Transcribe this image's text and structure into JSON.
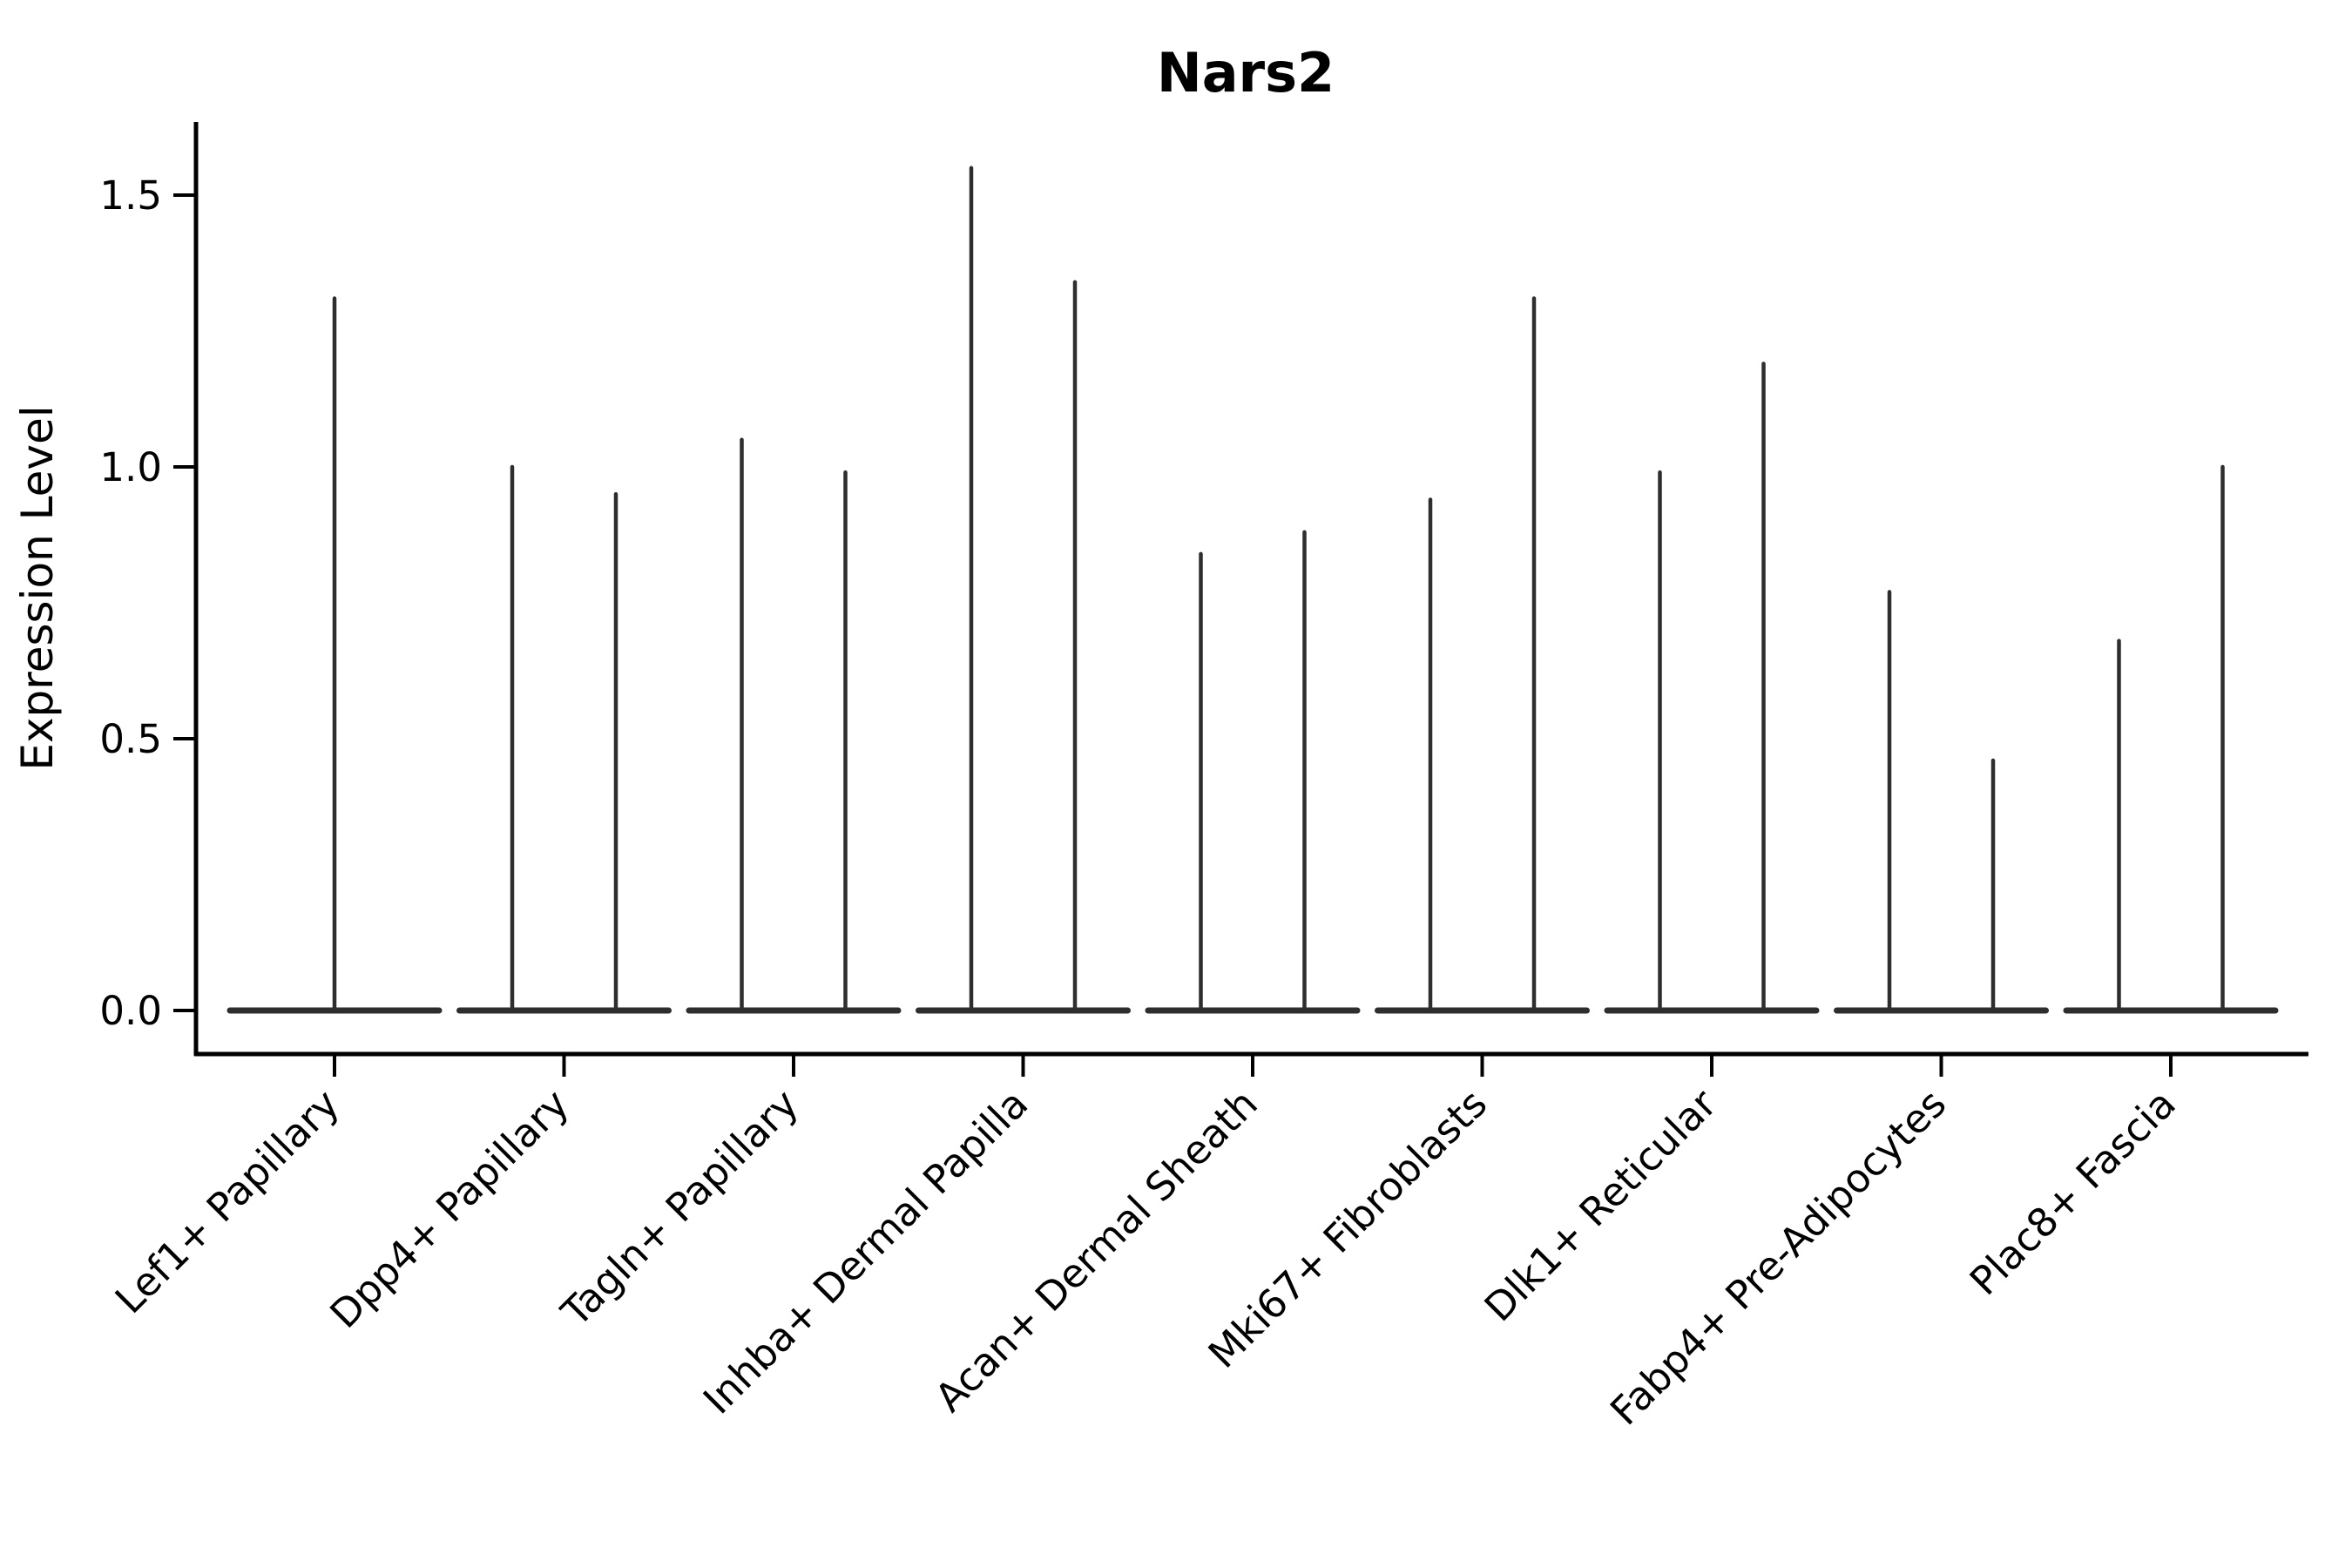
{
  "chart_data": {
    "type": "violin",
    "title": "Nars2",
    "ylabel": "Expression Level",
    "xlabel": "",
    "ylim": [
      0,
      1.64
    ],
    "yticks": [
      0.0,
      0.5,
      1.0,
      1.5
    ],
    "ytick_labels": [
      "0.0",
      "0.5",
      "1.0",
      "1.5"
    ],
    "grid": false,
    "legend_position": "none",
    "categories": [
      "Lef1+ Papillary",
      "Dpp4+ Papillary",
      "Tagln+ Papillary",
      "Inhba+ Dermal Papilla",
      "Acan+ Dermal Sheath",
      "Mki67+ Fibroblasts",
      "Dlk1+ Reticular",
      "Fabp4+ Pre-Adipocytes",
      "Plac8+ Fascia"
    ],
    "baseline_value": 0.0,
    "violins": [
      {
        "category": "Lef1+ Papillary",
        "spike_maxima": [
          1.31
        ]
      },
      {
        "category": "Dpp4+ Papillary",
        "spike_maxima": [
          1.0,
          0.95
        ]
      },
      {
        "category": "Tagln+ Papillary",
        "spike_maxima": [
          1.05,
          0.99
        ]
      },
      {
        "category": "Inhba+ Dermal Papilla",
        "spike_maxima": [
          1.55,
          1.34
        ]
      },
      {
        "category": "Acan+ Dermal Sheath",
        "spike_maxima": [
          0.84,
          0.88
        ]
      },
      {
        "category": "Mki67+ Fibroblasts",
        "spike_maxima": [
          0.94,
          1.31
        ]
      },
      {
        "category": "Dlk1+ Reticular",
        "spike_maxima": [
          0.99,
          1.19
        ]
      },
      {
        "category": "Fabp4+ Pre-Adipocytes",
        "spike_maxima": [
          0.77,
          0.46
        ]
      },
      {
        "category": "Plac8+ Fascia",
        "spike_maxima": [
          0.68,
          1.0
        ]
      }
    ],
    "colors": {
      "violin_stroke": "#2e2e2e",
      "axis": "#000000",
      "text": "#000000",
      "background": "#ffffff"
    }
  }
}
